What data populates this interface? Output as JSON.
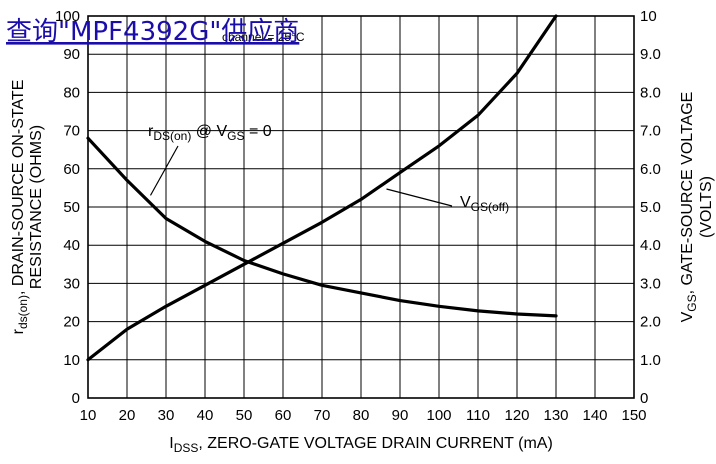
{
  "overlay": {
    "link_text": "查询\"MPF4392G\"供应商",
    "small_text": "channel = 25°C",
    "link_color": "#1a0dab"
  },
  "chart_data": {
    "type": "line",
    "x": {
      "label_main": "I",
      "label_sub": "DSS",
      "label_rest": ", ZERO-GATE VOLTAGE DRAIN CURRENT (mA)",
      "ticks": [
        "10",
        "20",
        "30",
        "40",
        "50",
        "60",
        "70",
        "80",
        "90",
        "100",
        "110",
        "120",
        "130",
        "140",
        "150"
      ],
      "range": [
        10,
        150
      ]
    },
    "y_left": {
      "line1_main": "r",
      "line1_sub": "ds(on)",
      "line1_rest": ", DRAIN-SOURCE ON-STATE",
      "line2": "RESISTANCE (OHMS)",
      "ticks": [
        "0",
        "10",
        "20",
        "30",
        "40",
        "50",
        "60",
        "70",
        "80",
        "90",
        "100"
      ],
      "range": [
        0,
        100
      ]
    },
    "y_right": {
      "line1_main": "V",
      "line1_sub": "GS",
      "line1_rest": ", GATE-SOURCE VOLTAGE",
      "line2": "(VOLTS)",
      "ticks": [
        "0",
        "1.0",
        "2.0",
        "3.0",
        "4.0",
        "5.0",
        "6.0",
        "7.0",
        "8.0",
        "9.0",
        "10"
      ],
      "range": [
        0,
        10
      ]
    },
    "series": [
      {
        "axis": "left",
        "x": [
          10,
          20,
          25,
          30,
          40,
          50,
          60,
          70,
          80,
          90,
          100,
          110,
          120,
          130
        ],
        "y": [
          68,
          57,
          52,
          47,
          41,
          36,
          32.5,
          29.5,
          27.5,
          25.5,
          24,
          22.8,
          22,
          21.5
        ]
      },
      {
        "axis": "right",
        "x": [
          10,
          20,
          30,
          40,
          50,
          60,
          70,
          80,
          90,
          100,
          110,
          120,
          130
        ],
        "y": [
          1.0,
          1.8,
          2.4,
          2.95,
          3.5,
          4.05,
          4.6,
          5.2,
          5.9,
          6.6,
          7.4,
          8.5,
          10.0
        ]
      }
    ],
    "annotations": [
      {
        "target_series": 0,
        "target_x": 25,
        "main": "r",
        "sub": "DS(on)",
        "mid": " @ V",
        "sub2": "GS",
        "tail": " = 0"
      },
      {
        "target_series": 1,
        "target_x": 85,
        "main": "V",
        "sub": "GS(off)"
      }
    ]
  }
}
